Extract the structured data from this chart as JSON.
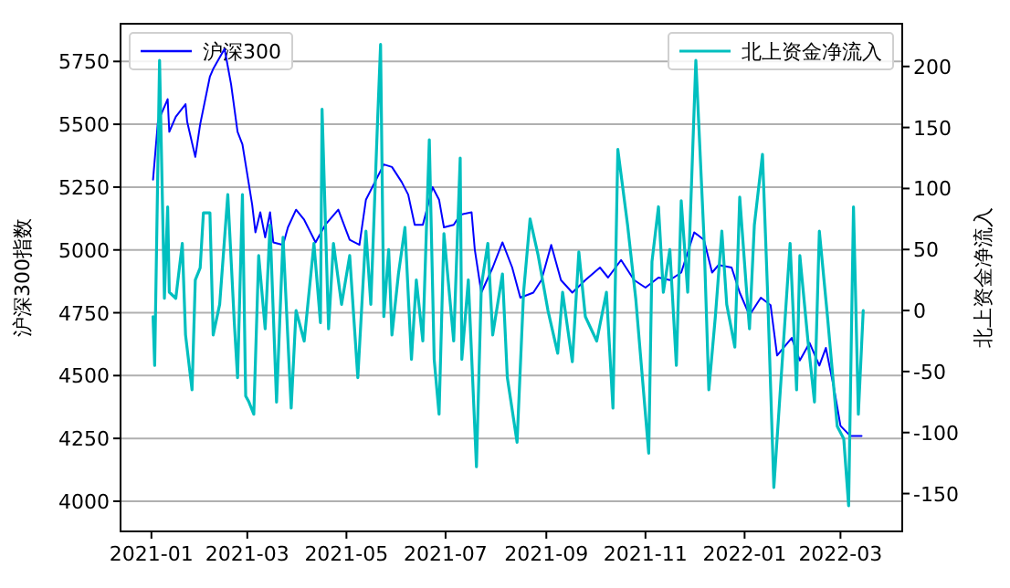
{
  "chart_data": {
    "type": "line",
    "ylabel": "沪深300指数",
    "y2label": "北上资金净流入",
    "legend": "top",
    "grid": "y",
    "line_style": "solid",
    "marker": "none",
    "xlim": [
      "2020-12-13",
      "2022-04-08"
    ],
    "xticks": [
      {
        "value": "2021-01-01",
        "label": "2021-01"
      },
      {
        "value": "2021-03-01",
        "label": "2021-03"
      },
      {
        "value": "2021-05-01",
        "label": "2021-05"
      },
      {
        "value": "2021-07-01",
        "label": "2021-07"
      },
      {
        "value": "2021-09-01",
        "label": "2021-09"
      },
      {
        "value": "2021-11-01",
        "label": "2021-11"
      },
      {
        "value": "2022-01-01",
        "label": "2022-01"
      },
      {
        "value": "2022-03-01",
        "label": "2022-03"
      }
    ],
    "ylim": [
      3880,
      5900
    ],
    "yticks": [
      4000,
      4250,
      4500,
      4750,
      5000,
      5250,
      5500,
      5750
    ],
    "y2lim": [
      -181,
      235
    ],
    "y2ticks": [
      -150,
      -100,
      -50,
      0,
      50,
      100,
      150,
      200
    ],
    "series": [
      {
        "name": "沪深300",
        "color": "#0000ff",
        "axis": "y",
        "x": [
          "2021-01-02",
          "2021-01-05",
          "2021-01-11",
          "2021-01-12",
          "2021-01-16",
          "2021-01-22",
          "2021-01-23",
          "2021-01-28",
          "2021-01-31",
          "2021-02-06",
          "2021-02-08",
          "2021-02-15",
          "2021-02-19",
          "2021-02-23",
          "2021-02-26",
          "2021-02-28",
          "2021-03-04",
          "2021-03-06",
          "2021-03-09",
          "2021-03-12",
          "2021-03-15",
          "2021-03-17",
          "2021-03-23",
          "2021-03-26",
          "2021-03-31",
          "2021-04-05",
          "2021-04-12",
          "2021-04-18",
          "2021-04-26",
          "2021-05-03",
          "2021-05-09",
          "2021-05-13",
          "2021-05-24",
          "2021-05-29",
          "2021-06-04",
          "2021-06-08",
          "2021-06-12",
          "2021-06-17",
          "2021-06-23",
          "2021-06-27",
          "2021-06-30",
          "2021-07-06",
          "2021-07-10",
          "2021-07-17",
          "2021-07-19",
          "2021-07-23",
          "2021-07-30",
          "2021-08-05",
          "2021-08-11",
          "2021-08-16",
          "2021-08-24",
          "2021-08-29",
          "2021-09-04",
          "2021-09-10",
          "2021-09-17",
          "2021-09-25",
          "2021-10-04",
          "2021-10-09",
          "2021-10-17",
          "2021-10-25",
          "2021-11-01",
          "2021-11-09",
          "2021-11-16",
          "2021-11-23",
          "2021-12-01",
          "2021-12-07",
          "2021-12-12",
          "2021-12-16",
          "2021-12-24",
          "2021-12-29",
          "2022-01-04",
          "2022-01-11",
          "2022-01-17",
          "2022-01-21",
          "2022-01-30",
          "2022-02-04",
          "2022-02-10",
          "2022-02-16",
          "2022-02-20",
          "2022-02-25",
          "2022-03-01",
          "2022-03-07",
          "2022-03-10",
          "2022-03-14"
        ],
        "values": [
          5280,
          5510,
          5600,
          5470,
          5530,
          5580,
          5510,
          5370,
          5500,
          5690,
          5720,
          5800,
          5660,
          5470,
          5420,
          5340,
          5180,
          5070,
          5150,
          5050,
          5150,
          5030,
          5020,
          5090,
          5160,
          5120,
          5030,
          5100,
          5160,
          5040,
          5020,
          5200,
          5340,
          5330,
          5270,
          5220,
          5100,
          5100,
          5250,
          5200,
          5090,
          5100,
          5140,
          5150,
          5000,
          4830,
          4930,
          5030,
          4930,
          4810,
          4830,
          4880,
          5020,
          4880,
          4830,
          4880,
          4930,
          4890,
          4960,
          4880,
          4850,
          4890,
          4880,
          4910,
          5070,
          5040,
          4910,
          4940,
          4930,
          4830,
          4740,
          4810,
          4780,
          4580,
          4650,
          4560,
          4630,
          4540,
          4610,
          4450,
          4300,
          4260,
          4260,
          4260
        ]
      },
      {
        "name": "北上资金净流入",
        "color": "#00bfbf",
        "axis": "y2",
        "x": [
          "2021-01-02",
          "2021-01-03",
          "2021-01-06",
          "2021-01-09",
          "2021-01-11",
          "2021-01-12",
          "2021-01-16",
          "2021-01-20",
          "2021-01-22",
          "2021-01-26",
          "2021-01-28",
          "2021-01-31",
          "2021-02-02",
          "2021-02-06",
          "2021-02-08",
          "2021-02-12",
          "2021-02-17",
          "2021-02-21",
          "2021-02-23",
          "2021-02-26",
          "2021-02-28",
          "2021-03-02",
          "2021-03-05",
          "2021-03-08",
          "2021-03-12",
          "2021-03-15",
          "2021-03-19",
          "2021-03-23",
          "2021-03-28",
          "2021-03-31",
          "2021-04-05",
          "2021-04-11",
          "2021-04-15",
          "2021-04-16",
          "2021-04-20",
          "2021-04-23",
          "2021-04-28",
          "2021-05-03",
          "2021-05-08",
          "2021-05-13",
          "2021-05-16",
          "2021-05-20",
          "2021-05-22",
          "2021-05-24",
          "2021-05-27",
          "2021-05-29",
          "2021-06-02",
          "2021-06-06",
          "2021-06-10",
          "2021-06-13",
          "2021-06-17",
          "2021-06-21",
          "2021-06-24",
          "2021-06-27",
          "2021-06-30",
          "2021-07-06",
          "2021-07-10",
          "2021-07-11",
          "2021-07-15",
          "2021-07-20",
          "2021-07-23",
          "2021-07-27",
          "2021-07-30",
          "2021-08-05",
          "2021-08-08",
          "2021-08-14",
          "2021-08-18",
          "2021-08-22",
          "2021-08-27",
          "2021-09-02",
          "2021-09-08",
          "2021-09-11",
          "2021-09-17",
          "2021-09-21",
          "2021-09-25",
          "2021-10-02",
          "2021-10-08",
          "2021-10-12",
          "2021-10-15",
          "2021-10-21",
          "2021-10-26",
          "2021-11-03",
          "2021-11-05",
          "2021-11-09",
          "2021-11-12",
          "2021-11-16",
          "2021-11-20",
          "2021-11-23",
          "2021-11-27",
          "2021-12-02",
          "2021-12-07",
          "2021-12-10",
          "2021-12-14",
          "2021-12-18",
          "2021-12-21",
          "2021-12-26",
          "2021-12-29",
          "2022-01-02",
          "2022-01-04",
          "2022-01-07",
          "2022-01-12",
          "2022-01-15",
          "2022-01-19",
          "2022-01-24",
          "2022-01-29",
          "2022-02-02",
          "2022-02-04",
          "2022-02-09",
          "2022-02-13",
          "2022-02-16",
          "2022-02-21",
          "2022-02-27",
          "2022-03-03",
          "2022-03-06",
          "2022-03-09",
          "2022-03-12",
          "2022-03-15"
        ],
        "values": [
          -5,
          -45,
          205,
          10,
          85,
          15,
          10,
          55,
          -20,
          -65,
          25,
          35,
          80,
          80,
          -20,
          5,
          95,
          -10,
          -55,
          95,
          -70,
          -75,
          -85,
          45,
          -15,
          70,
          -75,
          60,
          -80,
          0,
          -25,
          55,
          -10,
          165,
          -15,
          55,
          5,
          45,
          -55,
          65,
          5,
          150,
          218,
          -5,
          50,
          -20,
          30,
          68,
          -40,
          25,
          -25,
          140,
          -40,
          -85,
          63,
          -25,
          125,
          -40,
          25,
          -128,
          20,
          55,
          -20,
          30,
          -55,
          -108,
          15,
          75,
          45,
          0,
          -35,
          15,
          -42,
          48,
          -5,
          -25,
          15,
          -80,
          132,
          70,
          10,
          -117,
          40,
          85,
          15,
          50,
          -45,
          90,
          15,
          205,
          60,
          -65,
          -5,
          65,
          5,
          -30,
          93,
          20,
          -15,
          70,
          128,
          20,
          -145,
          -45,
          55,
          -65,
          45,
          -25,
          -75,
          65,
          -5,
          -95,
          -105,
          -160,
          85,
          -85,
          0
        ]
      }
    ]
  }
}
